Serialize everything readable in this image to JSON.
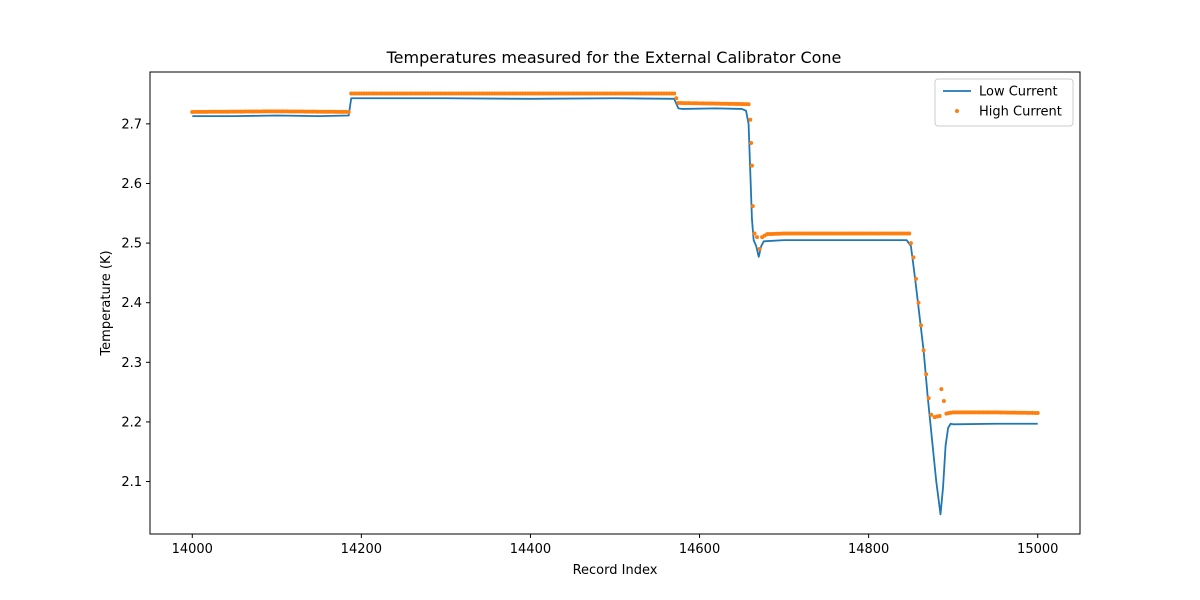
{
  "chart_data": {
    "type": "line",
    "title": "Temperatures measured for the External Calibrator Cone",
    "xlabel": "Record Index",
    "ylabel": "Temperature (K)",
    "xlim": [
      13950,
      15050
    ],
    "ylim": [
      2.012,
      2.787
    ],
    "xticks": [
      14000,
      14200,
      14400,
      14600,
      14800,
      15000
    ],
    "yticks": [
      2.1,
      2.2,
      2.3,
      2.4,
      2.5,
      2.6,
      2.7
    ],
    "grid": false,
    "legend_position": "top-right",
    "series": [
      {
        "name": "Low Current",
        "style": "line",
        "color": "#1f77b4",
        "points": [
          [
            14000,
            2.713
          ],
          [
            14050,
            2.713
          ],
          [
            14100,
            2.714
          ],
          [
            14150,
            2.713
          ],
          [
            14185,
            2.714
          ],
          [
            14188,
            2.743
          ],
          [
            14300,
            2.743
          ],
          [
            14400,
            2.742
          ],
          [
            14500,
            2.743
          ],
          [
            14570,
            2.742
          ],
          [
            14575,
            2.726
          ],
          [
            14580,
            2.725
          ],
          [
            14620,
            2.726
          ],
          [
            14650,
            2.725
          ],
          [
            14655,
            2.722
          ],
          [
            14658,
            2.7
          ],
          [
            14660,
            2.62
          ],
          [
            14662,
            2.54
          ],
          [
            14664,
            2.505
          ],
          [
            14667,
            2.495
          ],
          [
            14670,
            2.477
          ],
          [
            14673,
            2.495
          ],
          [
            14676,
            2.503
          ],
          [
            14700,
            2.505
          ],
          [
            14750,
            2.505
          ],
          [
            14800,
            2.505
          ],
          [
            14845,
            2.505
          ],
          [
            14850,
            2.495
          ],
          [
            14855,
            2.44
          ],
          [
            14860,
            2.38
          ],
          [
            14865,
            2.32
          ],
          [
            14870,
            2.24
          ],
          [
            14875,
            2.17
          ],
          [
            14880,
            2.1
          ],
          [
            14885,
            2.045
          ],
          [
            14888,
            2.09
          ],
          [
            14891,
            2.16
          ],
          [
            14894,
            2.19
          ],
          [
            14897,
            2.197
          ],
          [
            14900,
            2.196
          ],
          [
            14950,
            2.197
          ],
          [
            15000,
            2.197
          ]
        ]
      },
      {
        "name": "High Current",
        "style": "scatter",
        "color": "#ff7f0e",
        "points": [
          [
            14000,
            2.72
          ],
          [
            14100,
            2.721
          ],
          [
            14185,
            2.72
          ],
          [
            14188,
            2.751
          ],
          [
            14300,
            2.751
          ],
          [
            14400,
            2.751
          ],
          [
            14500,
            2.751
          ],
          [
            14570,
            2.751
          ],
          [
            14575,
            2.735
          ],
          [
            14620,
            2.734
          ],
          [
            14658,
            2.733
          ],
          [
            14660,
            2.707
          ],
          [
            14661,
            2.668
          ],
          [
            14662,
            2.63
          ],
          [
            14663,
            2.562
          ],
          [
            14665,
            2.516
          ],
          [
            14668,
            2.51
          ],
          [
            14671,
            2.49
          ],
          [
            14674,
            2.51
          ],
          [
            14680,
            2.515
          ],
          [
            14700,
            2.516
          ],
          [
            14750,
            2.516
          ],
          [
            14800,
            2.516
          ],
          [
            14848,
            2.516
          ],
          [
            14850,
            2.5
          ],
          [
            14853,
            2.476
          ],
          [
            14856,
            2.44
          ],
          [
            14859,
            2.4
          ],
          [
            14862,
            2.362
          ],
          [
            14865,
            2.32
          ],
          [
            14868,
            2.28
          ],
          [
            14871,
            2.24
          ],
          [
            14874,
            2.212
          ],
          [
            14878,
            2.208
          ],
          [
            14884,
            2.21
          ],
          [
            14886,
            2.255
          ],
          [
            14889,
            2.235
          ],
          [
            14892,
            2.214
          ],
          [
            14900,
            2.216
          ],
          [
            14950,
            2.216
          ],
          [
            15000,
            2.215
          ]
        ]
      }
    ]
  }
}
